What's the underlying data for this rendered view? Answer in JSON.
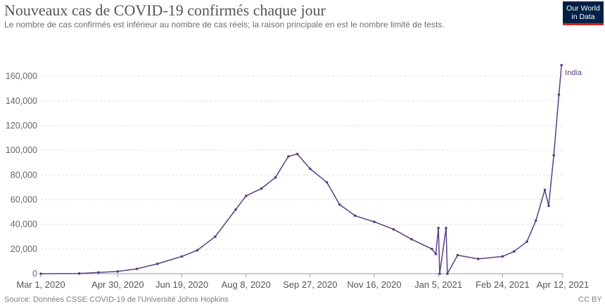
{
  "header": {
    "title": "Nouveaux cas de COVID-19 confirmés chaque jour",
    "subtitle": "Le nombre de cas confirmés est inférieur au nombre de cas réels; la raison principale en est le nombre limité de tests."
  },
  "logo": {
    "line1": "Our World",
    "line2": "in Data"
  },
  "footer": {
    "source": "Source: Données CSSE COVID-19 de l'Université Johns Hopkins",
    "license": "CC BY"
  },
  "colors": {
    "series": "#5a3f83",
    "grid": "#dddddd",
    "axis": "#999999"
  },
  "chart_data": {
    "type": "line",
    "title": "Nouveaux cas de COVID-19 confirmés chaque jour",
    "subtitle": "Le nombre de cas confirmés est inférieur au nombre de cas réels; la raison principale en est le nombre limité de tests.",
    "x_is_date": true,
    "xlim": [
      "2020-03-01",
      "2021-04-12"
    ],
    "ylim": [
      0,
      170000
    ],
    "x_ticks": [
      "2020-03-01",
      "2020-04-30",
      "2020-06-19",
      "2020-08-08",
      "2020-09-27",
      "2020-11-16",
      "2021-01-05",
      "2021-02-24",
      "2021-04-12"
    ],
    "x_tick_labels": [
      "Mar 1, 2020",
      "Apr 30, 2020",
      "Jun 19, 2020",
      "Aug 8, 2020",
      "Sep 27, 2020",
      "Nov 16, 2020",
      "Jan 5, 2021",
      "Feb 24, 2021",
      "Apr 12, 2021"
    ],
    "y_ticks": [
      0,
      20000,
      40000,
      60000,
      80000,
      100000,
      120000,
      140000,
      160000
    ],
    "y_tick_labels": [
      "0",
      "20,000",
      "40,000",
      "60,000",
      "80,000",
      "100,000",
      "120,000",
      "140,000",
      "160,000"
    ],
    "grid": "horizontal dashed",
    "series": [
      {
        "name": "India",
        "color": "#5a3f83",
        "points": [
          {
            "x": "2020-03-01",
            "y": 0
          },
          {
            "x": "2020-03-31",
            "y": 200
          },
          {
            "x": "2020-04-15",
            "y": 1000
          },
          {
            "x": "2020-04-30",
            "y": 1800
          },
          {
            "x": "2020-05-15",
            "y": 4000
          },
          {
            "x": "2020-05-31",
            "y": 8000
          },
          {
            "x": "2020-06-19",
            "y": 14000
          },
          {
            "x": "2020-07-01",
            "y": 19000
          },
          {
            "x": "2020-07-15",
            "y": 30000
          },
          {
            "x": "2020-07-31",
            "y": 52000
          },
          {
            "x": "2020-08-08",
            "y": 63000
          },
          {
            "x": "2020-08-20",
            "y": 69000
          },
          {
            "x": "2020-08-31",
            "y": 78000
          },
          {
            "x": "2020-09-10",
            "y": 95000
          },
          {
            "x": "2020-09-17",
            "y": 97000
          },
          {
            "x": "2020-09-27",
            "y": 85000
          },
          {
            "x": "2020-10-10",
            "y": 74000
          },
          {
            "x": "2020-10-20",
            "y": 56000
          },
          {
            "x": "2020-11-01",
            "y": 47000
          },
          {
            "x": "2020-11-16",
            "y": 42000
          },
          {
            "x": "2020-12-01",
            "y": 36000
          },
          {
            "x": "2020-12-15",
            "y": 28000
          },
          {
            "x": "2020-12-31",
            "y": 20000
          },
          {
            "x": "2021-01-03",
            "y": 16000
          },
          {
            "x": "2021-01-05",
            "y": 37000
          },
          {
            "x": "2021-01-06",
            "y": 0
          },
          {
            "x": "2021-01-11",
            "y": 37000
          },
          {
            "x": "2021-01-12",
            "y": 0
          },
          {
            "x": "2021-01-20",
            "y": 15000
          },
          {
            "x": "2021-02-05",
            "y": 12000
          },
          {
            "x": "2021-02-24",
            "y": 14000
          },
          {
            "x": "2021-03-05",
            "y": 18000
          },
          {
            "x": "2021-03-15",
            "y": 26000
          },
          {
            "x": "2021-03-22",
            "y": 43000
          },
          {
            "x": "2021-03-29",
            "y": 68000
          },
          {
            "x": "2021-04-01",
            "y": 55000
          },
          {
            "x": "2021-04-05",
            "y": 96000
          },
          {
            "x": "2021-04-09",
            "y": 145000
          },
          {
            "x": "2021-04-11",
            "y": 169000
          }
        ]
      }
    ]
  }
}
